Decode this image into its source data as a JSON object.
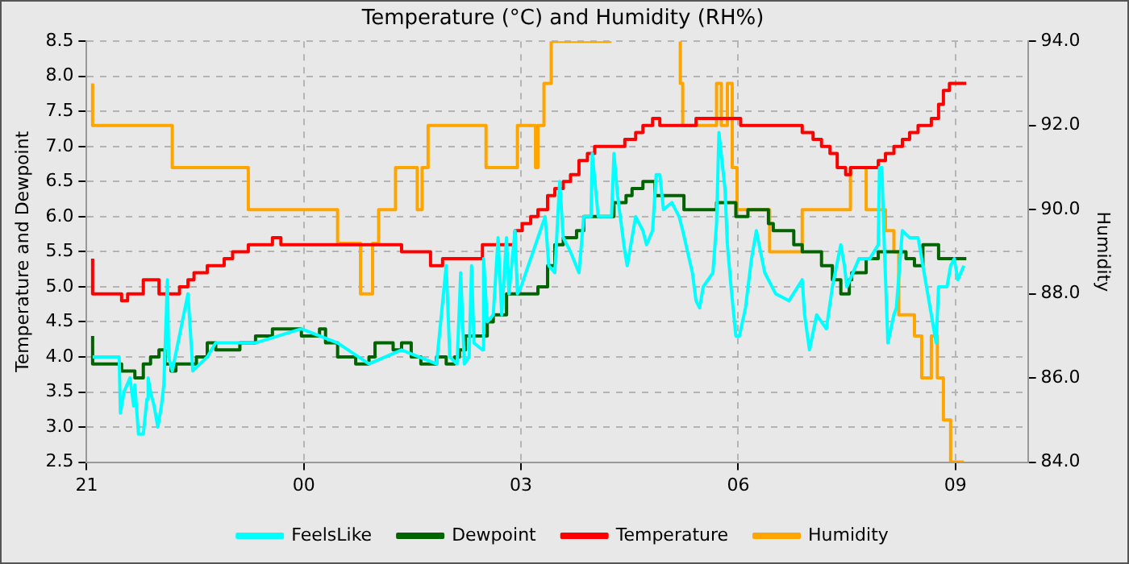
{
  "chart_data": {
    "type": "line",
    "title": "Temperature (°C) and Humidity (RH%)",
    "ylabel": "Temperature and Dewpoint",
    "y2label": "Humidity",
    "xlim": [
      "--01-01T21:00",
      "--01-02T10:00"
    ],
    "xticks": [
      {
        "value": "--01-01T21:00",
        "label": "21"
      },
      {
        "value": "--01-02T00:00",
        "label": "00"
      },
      {
        "value": "--01-02T03:00",
        "label": "03"
      },
      {
        "value": "--01-02T06:00",
        "label": "06"
      },
      {
        "value": "--01-02T09:00",
        "label": "09"
      }
    ],
    "ylim": [
      2.5,
      8.5
    ],
    "yticks": [
      2.5,
      {
        "value": 3,
        "label": "3.0"
      },
      3.5,
      {
        "value": 4,
        "label": "4.0"
      },
      4.5,
      {
        "value": 5,
        "label": "5.0"
      },
      5.5,
      {
        "value": 6,
        "label": "6.0"
      },
      6.5,
      {
        "value": 7,
        "label": "7.0"
      },
      7.5,
      {
        "value": 8,
        "label": "8.0"
      },
      8.5
    ],
    "y2lim": [
      84,
      94
    ],
    "y2ticks": [
      {
        "value": 84,
        "label": "84.0"
      },
      {
        "value": 86,
        "label": "86.0"
      },
      {
        "value": 88,
        "label": "88.0"
      },
      {
        "value": 90,
        "label": "90.0"
      },
      {
        "value": 92,
        "label": "92.0"
      },
      {
        "value": 94,
        "label": "94.0"
      }
    ],
    "grid": true,
    "legend": "bottom",
    "marker": "none",
    "series": [
      {
        "name": "FeelsLike",
        "type": "line",
        "color": "#00ffff",
        "x": [
          "--01-01T21:05",
          "--01-01T21:27",
          "--01-01T21:28",
          "--01-01T21:31",
          "--01-01T21:36",
          "--01-01T21:39",
          "--01-01T21:40",
          "--01-01T21:43",
          "--01-01T21:47",
          "--01-01T21:50",
          "--01-01T21:51",
          "--01-01T21:53",
          "--01-01T21:56",
          "--01-01T21:59",
          "--01-01T22:02",
          "--01-01T22:04",
          "--01-01T22:07",
          "--01-01T22:08",
          "--01-01T22:11",
          "--01-01T22:24",
          "--01-01T22:27",
          "--01-01T22:28",
          "--01-01T22:40",
          "--01-01T22:47",
          "--01-01T23:20",
          "--01-01T23:58",
          "--01-02T00:28",
          "--01-02T00:54",
          "--01-02T01:21",
          "--01-02T01:50",
          "--01-02T01:58",
          "--01-02T02:01",
          "--01-02T02:07",
          "--01-02T02:10",
          "--01-02T02:13",
          "--01-02T02:17",
          "--01-02T02:19",
          "--01-02T02:21",
          "--01-02T02:28",
          "--01-02T02:29",
          "--01-02T02:32",
          "--01-02T02:37",
          "--01-02T02:41",
          "--01-02T02:44",
          "--01-02T02:48",
          "--01-02T02:50",
          "--01-02T02:55",
          "--01-02T02:57",
          "--01-02T03:00",
          "--01-02T03:20",
          "--01-02T03:23",
          "--01-02T03:28",
          "--01-02T03:32",
          "--01-02T03:35",
          "--01-02T03:41",
          "--01-02T03:48",
          "--01-02T03:52",
          "--01-02T03:58",
          "--01-02T03:59",
          "--01-02T04:04",
          "--01-02T04:15",
          "--01-02T04:17",
          "--01-02T04:20",
          "--01-02T04:26",
          "--01-02T04:28",
          "--01-02T04:35",
          "--01-02T04:41",
          "--01-02T04:44",
          "--01-02T04:49",
          "--01-02T04:52",
          "--01-02T04:55",
          "--01-02T04:58",
          "--01-02T05:05",
          "--01-02T05:11",
          "--01-02T05:14",
          "--01-02T05:18",
          "--01-02T05:22",
          "--01-02T05:25",
          "--01-02T05:28",
          "--01-02T05:31",
          "--01-02T05:39",
          "--01-02T05:42",
          "--01-02T05:44",
          "--01-02T05:49",
          "--01-02T05:51",
          "--01-02T05:54",
          "--01-02T05:58",
          "--01-02T06:01",
          "--01-02T06:06",
          "--01-02T06:11",
          "--01-02T06:15",
          "--01-02T06:22",
          "--01-02T06:31",
          "--01-02T06:42",
          "--01-02T06:53",
          "--01-02T06:55",
          "--01-02T06:59",
          "--01-02T07:05",
          "--01-02T07:13",
          "--01-02T07:18",
          "--01-02T07:25",
          "--01-02T07:28",
          "--01-02T07:30",
          "--01-02T07:40",
          "--01-02T07:49",
          "--01-02T07:56",
          "--01-02T07:57",
          "--01-02T07:59",
          "--01-02T08:01",
          "--01-02T08:04",
          "--01-02T08:09",
          "--01-02T08:11",
          "--01-02T08:16",
          "--01-02T08:22",
          "--01-02T08:29",
          "--01-02T08:36",
          "--01-02T08:43",
          "--01-02T08:44",
          "--01-02T08:46",
          "--01-02T08:53",
          "--01-02T08:56",
          "--01-02T08:59",
          "--01-02T09:02",
          "--01-02T09:07"
        ],
        "values": [
          4.0,
          4.0,
          3.2,
          3.5,
          3.7,
          3.3,
          3.6,
          2.9,
          2.9,
          3.4,
          3.7,
          3.5,
          3.3,
          3.0,
          3.3,
          3.6,
          5.1,
          4.0,
          3.8,
          4.9,
          4.1,
          3.8,
          4.0,
          4.2,
          4.2,
          4.4,
          4.2,
          3.9,
          4.1,
          3.9,
          5.3,
          4.0,
          3.9,
          5.2,
          3.9,
          4.0,
          5.3,
          4.2,
          4.1,
          5.4,
          4.5,
          4.6,
          5.7,
          4.6,
          5.7,
          4.9,
          5.8,
          4.9,
          5.0,
          6.0,
          5.3,
          5.2,
          6.5,
          5.7,
          5.5,
          5.2,
          6.0,
          6.0,
          6.9,
          6.0,
          6.0,
          6.9,
          6.3,
          5.5,
          5.3,
          6.0,
          5.8,
          5.6,
          5.8,
          6.6,
          6.6,
          6.1,
          6.2,
          6.0,
          5.8,
          5.5,
          5.2,
          4.8,
          4.7,
          5.0,
          5.2,
          5.9,
          7.2,
          6.4,
          5.6,
          5.0,
          4.3,
          4.3,
          4.7,
          5.4,
          5.8,
          5.2,
          4.9,
          4.8,
          5.1,
          4.6,
          4.1,
          4.6,
          4.4,
          5.0,
          5.6,
          5.3,
          5.0,
          5.4,
          5.4,
          5.6,
          6.7,
          6.7,
          5.6,
          4.2,
          4.6,
          4.7,
          5.8,
          5.7,
          5.7,
          5.0,
          4.3,
          4.2,
          5.0,
          5.0,
          5.3,
          5.4,
          5.1,
          5.3
        ]
      },
      {
        "name": "Dewpoint",
        "type": "step",
        "color": "#006400",
        "x": [
          "--01-01T21:05",
          "--01-01T21:29",
          "--01-01T21:40",
          "--01-01T21:47",
          "--01-01T21:53",
          "--01-01T22:00",
          "--01-01T22:05",
          "--01-01T22:10",
          "--01-01T22:14",
          "--01-01T22:31",
          "--01-01T22:40",
          "--01-01T22:47",
          "--01-01T23:07",
          "--01-01T23:20",
          "--01-01T23:34",
          "--01-01T23:58",
          "--01-02T00:13",
          "--01-02T00:18",
          "--01-02T00:28",
          "--01-02T00:43",
          "--01-02T00:54",
          "--01-02T00:59",
          "--01-02T01:14",
          "--01-02T01:21",
          "--01-02T01:29",
          "--01-02T01:37",
          "--01-02T01:50",
          "--01-02T01:58",
          "--01-02T02:05",
          "--01-02T02:09",
          "--01-02T02:14",
          "--01-02T02:32",
          "--01-02T02:37",
          "--01-02T02:48",
          "--01-02T03:14",
          "--01-02T03:22",
          "--01-02T03:28",
          "--01-02T03:35",
          "--01-02T03:46",
          "--01-02T03:52",
          "--01-02T04:17",
          "--01-02T04:27",
          "--01-02T04:32",
          "--01-02T04:41",
          "--01-02T04:51",
          "--01-02T05:15",
          "--01-02T05:42",
          "--01-02T05:58",
          "--01-02T06:08",
          "--01-02T06:25",
          "--01-02T06:29",
          "--01-02T06:46",
          "--01-02T06:53",
          "--01-02T07:09",
          "--01-02T07:18",
          "--01-02T07:25",
          "--01-02T07:32",
          "--01-02T07:34",
          "--01-02T07:46",
          "--01-02T07:56",
          "--01-02T08:19",
          "--01-02T08:26",
          "--01-02T08:33",
          "--01-02T08:46",
          "--01-02T09:00",
          "--01-02T09:09"
        ],
        "values": [
          4.3,
          3.9,
          3.8,
          3.7,
          3.9,
          4.0,
          4.1,
          3.9,
          3.8,
          3.9,
          4.0,
          4.2,
          4.1,
          4.2,
          4.3,
          4.4,
          4.3,
          4.4,
          4.2,
          4.0,
          3.9,
          4.0,
          4.2,
          4.1,
          4.2,
          4.0,
          3.9,
          4.0,
          3.9,
          4.0,
          4.1,
          4.3,
          4.5,
          4.6,
          4.9,
          5.0,
          5.3,
          5.6,
          5.7,
          5.8,
          6.0,
          6.2,
          6.3,
          6.4,
          6.5,
          6.3,
          6.1,
          6.2,
          6.0,
          6.1,
          5.9,
          5.8,
          5.6,
          5.5,
          5.3,
          5.1,
          4.9,
          5.1,
          5.2,
          5.4,
          5.5,
          5.4,
          5.3,
          5.6,
          5.4,
          5.4
        ]
      },
      {
        "name": "Temperature",
        "type": "step",
        "color": "#ff0000",
        "x": [
          "--01-01T21:05",
          "--01-01T21:29",
          "--01-01T21:34",
          "--01-01T21:47",
          "--01-01T22:00",
          "--01-01T22:17",
          "--01-01T22:24",
          "--01-01T22:29",
          "--01-01T22:40",
          "--01-01T22:54",
          "--01-01T23:01",
          "--01-01T23:14",
          "--01-01T23:34",
          "--01-01T23:41",
          "--01-02T01:21",
          "--01-02T01:45",
          "--01-02T01:55",
          "--01-02T02:28",
          "--01-02T02:55",
          "--01-02T03:01",
          "--01-02T03:08",
          "--01-02T03:14",
          "--01-02T03:22",
          "--01-02T03:28",
          "--01-02T03:35",
          "--01-02T03:41",
          "--01-02T03:48",
          "--01-02T03:55",
          "--01-02T04:01",
          "--01-02T04:26",
          "--01-02T04:35",
          "--01-02T04:41",
          "--01-02T04:49",
          "--01-02T04:55",
          "--01-02T05:25",
          "--01-02T06:02",
          "--01-02T06:53",
          "--01-02T07:02",
          "--01-02T07:09",
          "--01-02T07:16",
          "--01-02T07:22",
          "--01-02T07:29",
          "--01-02T07:33",
          "--01-02T07:56",
          "--01-02T08:02",
          "--01-02T08:09",
          "--01-02T08:16",
          "--01-02T08:22",
          "--01-02T08:29",
          "--01-02T08:40",
          "--01-02T08:46",
          "--01-02T08:50",
          "--01-02T08:55",
          "--01-02T08:59",
          "--01-02T09:09"
        ],
        "values": [
          5.4,
          4.9,
          4.8,
          4.9,
          5.1,
          4.9,
          5.0,
          5.1,
          5.2,
          5.3,
          5.4,
          5.5,
          5.6,
          5.7,
          5.6,
          5.5,
          5.3,
          5.4,
          5.6,
          5.8,
          5.9,
          6.0,
          6.1,
          6.3,
          6.4,
          6.5,
          6.6,
          6.8,
          6.9,
          7.0,
          7.1,
          7.2,
          7.3,
          7.4,
          7.3,
          7.4,
          7.3,
          7.2,
          7.1,
          7.0,
          6.9,
          6.7,
          6.6,
          6.7,
          6.8,
          6.9,
          7.0,
          7.1,
          7.2,
          7.3,
          7.4,
          7.6,
          7.8,
          7.9,
          7.9
        ]
      },
      {
        "name": "Humidity",
        "type": "step",
        "axis": "y2",
        "color": "#ffa500",
        "x": [
          "--01-01T21:05",
          "--01-01T22:11",
          "--01-01T23:14",
          "--01-02T00:28",
          "--01-02T00:47",
          "--01-02T00:57",
          "--01-02T01:02",
          "--01-02T01:16",
          "--01-02T01:34",
          "--01-02T01:38",
          "--01-02T01:43",
          "--01-02T02:31",
          "--01-02T02:57",
          "--01-02T03:12",
          "--01-02T03:14",
          "--01-02T03:19",
          "--01-02T03:25",
          "--01-02T04:15",
          "--01-02T04:18",
          "--01-02T05:12",
          "--01-02T05:14",
          "--01-02T05:42",
          "--01-02T05:46",
          "--01-02T05:51",
          "--01-02T05:55",
          "--01-02T05:59",
          "--01-02T06:26",
          "--01-02T06:53",
          "--01-02T07:33",
          "--01-02T07:46",
          "--01-02T08:02",
          "--01-02T08:09",
          "--01-02T08:13",
          "--01-02T08:26",
          "--01-02T08:32",
          "--01-02T08:40",
          "--01-02T08:45",
          "--01-02T08:50",
          "--01-02T08:56",
          "--01-02T09:02",
          "--01-02T09:07"
        ],
        "values": [
          93.0,
          92.0,
          91.0,
          90.0,
          89.2,
          88.0,
          89.2,
          90.0,
          91.0,
          90.0,
          91.0,
          92.0,
          91.0,
          92.0,
          91.0,
          92.0,
          93.0,
          94.0,
          null,
          94.0,
          93.0,
          92.0,
          93.0,
          92.0,
          93.0,
          91.0,
          90.0,
          89.0,
          90.0,
          91.0,
          90.0,
          89.5,
          89.0,
          87.5,
          87.0,
          86.0,
          87.0,
          86.0,
          85.0,
          84.0,
          84.0
        ]
      }
    ]
  }
}
